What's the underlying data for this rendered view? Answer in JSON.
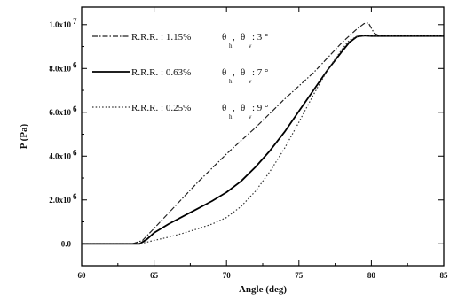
{
  "chart_data": {
    "type": "line",
    "title": "",
    "xlabel": "Angle (deg)",
    "ylabel": "P (Pa)",
    "xlim": [
      60,
      85
    ],
    "ylim": [
      -1000000,
      10800000
    ],
    "xticks": [
      60,
      65,
      70,
      75,
      80,
      85
    ],
    "xtick_labels": [
      "60",
      "65",
      "70",
      "75",
      "80",
      "85"
    ],
    "yticks": [
      0,
      2000000,
      4000000,
      6000000,
      8000000,
      10000000
    ],
    "ytick_labels": [
      "0.0",
      "2.0x10",
      "4.0x10",
      "6.0x10",
      "8.0x10",
      "1.0x10"
    ],
    "ytick_exponent": "6",
    "ytick_exponent_last": "7",
    "legend_placement": "top-left",
    "series": [
      {
        "name": "R.R.R. : 1.15%",
        "theta_label": "θ",
        "theta_sub_h": "h",
        "theta_sep": ",",
        "theta_sub_v": "v",
        "theta_value": ": 3 °",
        "style": "dashdot",
        "color": "#222222",
        "x": [
          60,
          63.5,
          64.2,
          65,
          66,
          67,
          68,
          69,
          70,
          71,
          72,
          73,
          74,
          75,
          76,
          77,
          78,
          79,
          79.5,
          79.8,
          80.2,
          80.6,
          81,
          85
        ],
        "y": [
          0,
          0,
          150000,
          700000,
          1400000,
          2100000,
          2800000,
          3450000,
          4100000,
          4700000,
          5300000,
          5950000,
          6600000,
          7200000,
          7800000,
          8500000,
          9200000,
          9800000,
          10050000,
          10080000,
          9600000,
          9480000,
          9480000,
          9480000
        ]
      },
      {
        "name": "R.R.R. : 0.63%",
        "theta_label": "θ",
        "theta_sub_h": "h",
        "theta_sep": ",",
        "theta_sub_v": "v",
        "theta_value": ": 7 °",
        "style": "solid",
        "color": "#000000",
        "x": [
          60,
          64,
          64.5,
          65,
          66,
          67,
          68,
          69,
          70,
          71,
          72,
          73,
          74,
          75,
          76,
          77,
          78,
          78.5,
          79,
          79.5,
          80,
          85
        ],
        "y": [
          0,
          0,
          200000,
          500000,
          900000,
          1250000,
          1600000,
          1950000,
          2350000,
          2850000,
          3500000,
          4250000,
          5100000,
          6050000,
          7000000,
          7950000,
          8800000,
          9200000,
          9450000,
          9500000,
          9480000,
          9480000
        ]
      },
      {
        "name": "R.R.R. : 0.25%",
        "theta_label": "θ",
        "theta_sub_h": "h",
        "theta_sep": ",",
        "theta_sub_v": "v",
        "theta_value": ": 9 °",
        "style": "dotted",
        "color": "#333333",
        "x": [
          60,
          64,
          65,
          66,
          67,
          68,
          69,
          70,
          71,
          72,
          73,
          74,
          75,
          76,
          77,
          78,
          78.5,
          79,
          79.5,
          80,
          85
        ],
        "y": [
          0,
          0,
          150000,
          300000,
          480000,
          680000,
          900000,
          1200000,
          1700000,
          2400000,
          3300000,
          4350000,
          5550000,
          6800000,
          7950000,
          8900000,
          9300000,
          9450000,
          9480000,
          9480000,
          9480000
        ]
      }
    ]
  }
}
